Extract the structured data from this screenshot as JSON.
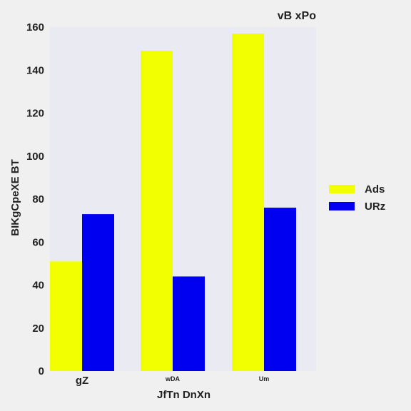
{
  "chart_data": {
    "type": "bar",
    "title": "vB xPo",
    "xlabel": "JfTn DnXn",
    "ylabel": "BIKgCpeXE BT",
    "categories": [
      "gZ",
      "wDA",
      "Um"
    ],
    "series": [
      {
        "name": "Ads",
        "color": "#f2ff00",
        "values": [
          51,
          149,
          157
        ]
      },
      {
        "name": "URz",
        "color": "#0000f0",
        "values": [
          73,
          44,
          76
        ]
      }
    ],
    "ylim": [
      0,
      160
    ],
    "yticks": [
      0,
      20,
      40,
      60,
      80,
      100,
      120,
      140,
      160
    ],
    "grid": false,
    "legend_position": "right",
    "background_color": "#eaeaf2"
  }
}
